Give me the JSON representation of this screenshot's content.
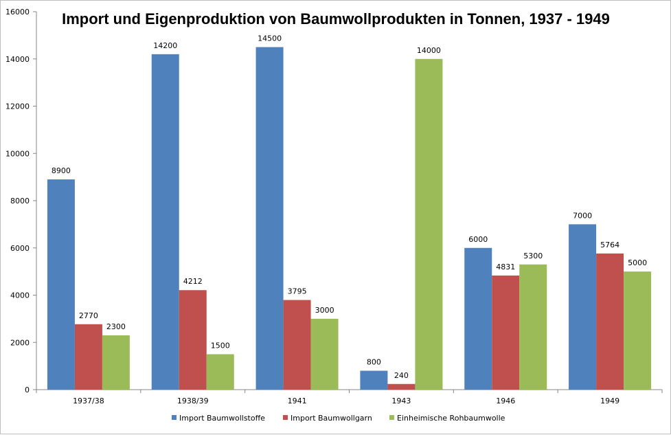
{
  "chart_data": {
    "type": "bar",
    "title": "Import und Eigenproduktion von Baumwollprodukten in Tonnen, 1937 - 1949",
    "xlabel": "",
    "ylabel": "",
    "ylim": [
      0,
      16000
    ],
    "yticks": [
      0,
      2000,
      4000,
      6000,
      8000,
      10000,
      12000,
      14000,
      16000
    ],
    "grid": false,
    "legend_position": "bottom",
    "categories": [
      "1937/38",
      "1938/39",
      "1941",
      "1943",
      "1946",
      "1949"
    ],
    "series": [
      {
        "name": "Import Baumwollstoffe",
        "color": "#4F81BD",
        "values": [
          8900,
          14200,
          14500,
          800,
          6000,
          7000
        ]
      },
      {
        "name": "Import Baumwollgarn",
        "color": "#C0504D",
        "values": [
          2770,
          4212,
          3795,
          240,
          4831,
          5764
        ]
      },
      {
        "name": "Einheimische Rohbaumwolle",
        "color": "#9BBB59",
        "values": [
          2300,
          1500,
          3000,
          14000,
          5300,
          5000
        ]
      }
    ]
  }
}
